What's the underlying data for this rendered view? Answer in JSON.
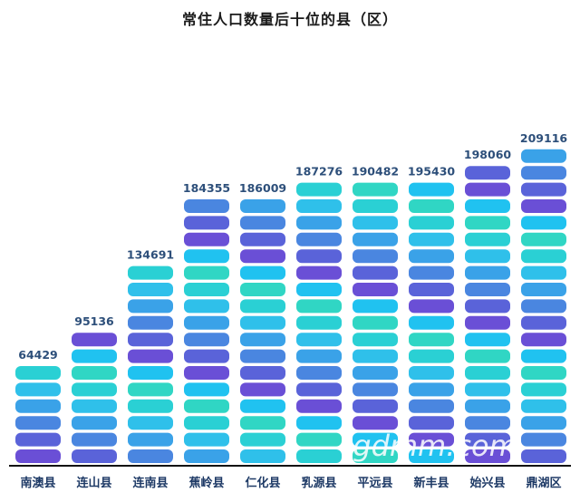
{
  "watermark": "gdmm.com",
  "chart_data": {
    "type": "bar",
    "title": "常住人口数量后十位的县（区）",
    "categories": [
      "南澳县",
      "连山县",
      "连南县",
      "蕉岭县",
      "仁化县",
      "乳源县",
      "平远县",
      "新丰县",
      "始兴县",
      "鼎湖区"
    ],
    "values": [
      64429,
      95136,
      134691,
      184355,
      186009,
      187276,
      190482,
      195430,
      198060,
      209116
    ],
    "xlabel": "",
    "ylabel": "",
    "grid": false,
    "legend": "none",
    "colors": {
      "segment_palette": [
        "#6a4fd6",
        "#5a63d9",
        "#4a86e0",
        "#3aa2e8",
        "#2fc0ea",
        "#2ad0d4",
        "#30d6c4",
        "#20c2f0"
      ],
      "baseline": "#111111"
    }
  }
}
